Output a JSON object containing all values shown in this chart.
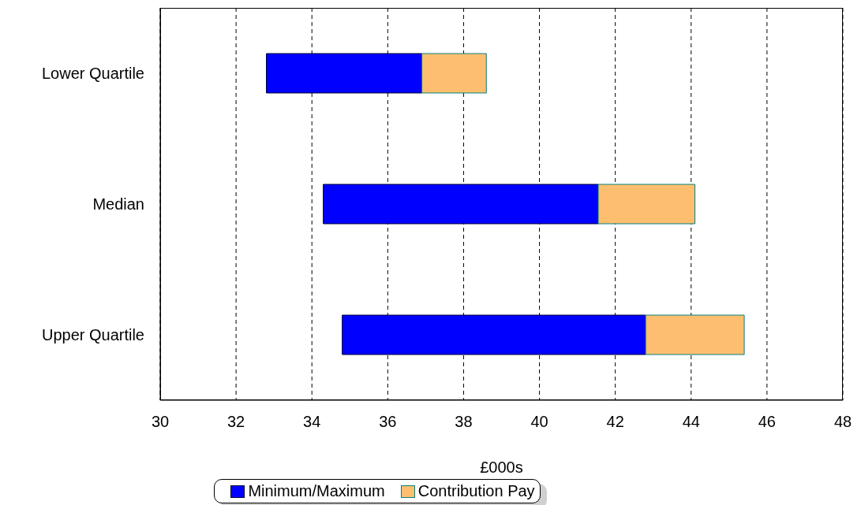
{
  "chart_data": {
    "type": "bar",
    "orientation": "horizontal",
    "xlabel": "£000s",
    "categories": [
      "Lower Quartile",
      "Median",
      "Upper Quartile"
    ],
    "series": [
      {
        "name": "Minimum/Maximum",
        "color": "#0000ff",
        "base": [
          32.8,
          34.3,
          34.8
        ],
        "values": [
          4.1,
          7.25,
          8.0
        ]
      },
      {
        "name": "Contribution Pay",
        "color": "#fdbf6f",
        "base": [
          36.9,
          41.55,
          42.8
        ],
        "values": [
          1.7,
          2.55,
          2.6
        ]
      }
    ],
    "xlim": [
      30,
      48
    ],
    "xticks": [
      30,
      32,
      34,
      36,
      38,
      40,
      42,
      44,
      46,
      48
    ],
    "grid": "x",
    "legend": "bottom"
  }
}
